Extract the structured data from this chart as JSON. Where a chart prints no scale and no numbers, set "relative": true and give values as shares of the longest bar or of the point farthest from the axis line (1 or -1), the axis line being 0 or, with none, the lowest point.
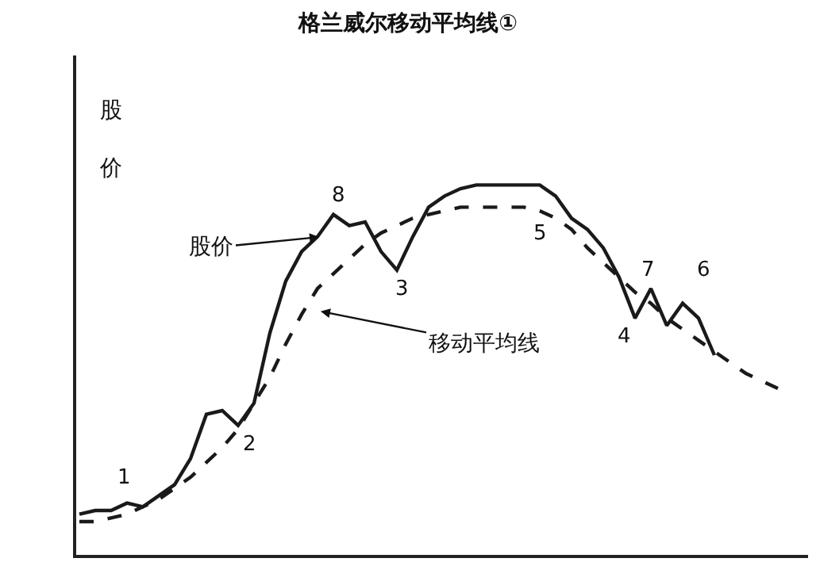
{
  "chart_data": {
    "type": "line",
    "title": "格兰威尔移动平均线①",
    "ylabel": "股价",
    "relative": true,
    "categories": [
      null,
      null,
      null,
      null,
      null,
      null,
      null,
      null,
      null,
      null,
      null,
      null,
      null,
      null,
      null,
      null,
      null,
      null,
      null,
      null,
      null,
      null,
      null,
      null,
      null,
      null,
      null,
      null,
      null,
      null,
      null,
      null,
      null,
      null,
      null,
      null,
      null,
      null,
      null,
      null,
      null,
      null,
      null,
      null,
      null
    ],
    "series": [
      {
        "color": "#1a1a1a",
        "line_style": "solid",
        "values": [
          0.11,
          0.12,
          0.12,
          0.14,
          0.13,
          0.16,
          0.19,
          0.26,
          0.38,
          0.39,
          0.35,
          0.41,
          0.6,
          0.74,
          0.82,
          0.86,
          0.92,
          0.89,
          0.9,
          0.82,
          0.77,
          0.86,
          0.94,
          0.97,
          0.99,
          1.0,
          1.0,
          1.0,
          1.0,
          1.0,
          0.97,
          0.91,
          0.88,
          0.83,
          0.75,
          0.64,
          0.72,
          0.62,
          0.68,
          0.64,
          0.54,
          null,
          null,
          null,
          null
        ]
      },
      {
        "color": "#1a1a1a",
        "line_style": "dashed",
        "values": [
          0.09,
          0.09,
          0.1,
          0.11,
          0.13,
          0.15,
          0.18,
          0.21,
          0.25,
          0.29,
          0.34,
          0.41,
          0.48,
          0.57,
          0.65,
          0.72,
          0.76,
          0.8,
          0.84,
          0.87,
          0.89,
          0.91,
          0.92,
          0.93,
          0.94,
          0.94,
          0.94,
          0.94,
          0.94,
          0.93,
          0.91,
          0.88,
          0.83,
          0.79,
          0.75,
          0.71,
          0.68,
          0.64,
          0.61,
          0.58,
          0.55,
          0.52,
          0.49,
          0.47,
          0.45
        ]
      }
    ],
    "annotations": [
      "1",
      "2",
      "3",
      "4",
      "5",
      "6",
      "7",
      "8",
      "股价",
      "移动平均线"
    ]
  }
}
